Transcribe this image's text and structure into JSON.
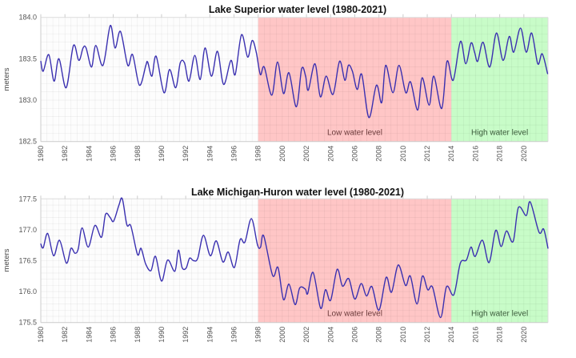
{
  "chart_data": [
    {
      "type": "line",
      "title": "Lake Superior water level (1980-2021)",
      "xlabel": "",
      "ylabel": "meters",
      "xlim": [
        1980,
        2022
      ],
      "ylim": [
        182.5,
        184.0
      ],
      "yticks": [
        "182.5",
        "183.0",
        "183.5",
        "184.0"
      ],
      "xticks": [
        "1980",
        "1982",
        "1984",
        "1986",
        "1988",
        "1990",
        "1992",
        "1994",
        "1996",
        "1998",
        "2000",
        "2002",
        "2004",
        "2006",
        "2008",
        "2010",
        "2012",
        "2014",
        "2016",
        "2018",
        "2020"
      ],
      "grid": true,
      "regions": [
        {
          "label": "Low water level",
          "from": 1998,
          "to": 2014,
          "color": "#ffc6c6",
          "text_color": "#6b3b3b"
        },
        {
          "label": "High water level",
          "from": 2014,
          "to": 2022,
          "color": "#c8fcc8",
          "text_color": "#3b5b3b"
        }
      ],
      "line_color": "#3a30b0",
      "x": [
        1980.0,
        1980.2,
        1980.66,
        1981.1,
        1981.5,
        1982.1,
        1982.7,
        1983.15,
        1983.5,
        1983.75,
        1984.2,
        1984.55,
        1985.15,
        1985.75,
        1986.15,
        1986.6,
        1987.2,
        1987.6,
        1988.17,
        1988.7,
        1988.85,
        1989.2,
        1989.55,
        1990.2,
        1990.66,
        1991.17,
        1991.55,
        1991.9,
        1992.27,
        1992.75,
        1993.2,
        1993.6,
        1994.13,
        1994.63,
        1995.14,
        1995.74,
        1996.1,
        1996.62,
        1997.13,
        1997.5,
        1997.84,
        1998.18,
        1998.5,
        1999.13,
        1999.6,
        2000.1,
        2000.55,
        2001.16,
        2001.6,
        2001.93,
        2002.15,
        2002.7,
        2003.15,
        2003.63,
        2004.2,
        2004.74,
        2005.18,
        2005.47,
        2005.8,
        2006.2,
        2006.58,
        2007.17,
        2007.79,
        2008.23,
        2008.56,
        2009.16,
        2009.66,
        2010.22,
        2010.62,
        2011.21,
        2011.58,
        2012.16,
        2012.54,
        2013.2,
        2013.64,
        2014.15,
        2014.75,
        2015.19,
        2015.63,
        2015.92,
        2016.18,
        2016.62,
        2017.18,
        2017.73,
        2018.28,
        2018.79,
        2019.16,
        2019.72,
        2020.2,
        2020.65,
        2021.15,
        2021.52,
        2021.97
      ],
      "y": [
        183.47,
        183.35,
        183.55,
        183.23,
        183.5,
        183.15,
        183.66,
        183.48,
        183.63,
        183.63,
        183.4,
        183.66,
        183.42,
        183.9,
        183.63,
        183.83,
        183.42,
        183.55,
        183.18,
        183.42,
        183.46,
        183.29,
        183.53,
        183.09,
        183.37,
        183.15,
        183.45,
        183.45,
        183.23,
        183.54,
        183.25,
        183.63,
        183.29,
        183.59,
        183.19,
        183.48,
        183.31,
        183.79,
        183.52,
        183.72,
        183.58,
        183.31,
        183.4,
        183.06,
        183.46,
        183.08,
        183.33,
        182.92,
        183.38,
        183.29,
        183.12,
        183.44,
        183.04,
        183.29,
        183.07,
        183.47,
        183.24,
        183.42,
        183.35,
        183.13,
        183.31,
        182.79,
        183.18,
        182.97,
        183.42,
        183.09,
        183.42,
        183.09,
        183.22,
        182.88,
        183.27,
        182.94,
        183.29,
        182.9,
        183.47,
        183.24,
        183.71,
        183.44,
        183.69,
        183.58,
        183.47,
        183.7,
        183.4,
        183.81,
        183.48,
        183.77,
        183.58,
        183.87,
        183.58,
        183.81,
        183.44,
        183.56,
        183.32
      ]
    },
    {
      "type": "line",
      "title": "Lake Michigan-Huron water level (1980-2021)",
      "xlabel": "",
      "ylabel": "meters",
      "xlim": [
        1980,
        2022
      ],
      "ylim": [
        175.5,
        177.5
      ],
      "yticks": [
        "175.5",
        "176.0",
        "176.5",
        "177.0",
        "177.5"
      ],
      "xticks": [
        "1980",
        "1982",
        "1984",
        "1986",
        "1988",
        "1990",
        "1992",
        "1994",
        "1996",
        "1998",
        "2000",
        "2002",
        "2004",
        "2006",
        "2008",
        "2010",
        "2012",
        "2014",
        "2016",
        "2018",
        "2020"
      ],
      "grid": true,
      "regions": [
        {
          "label": "Low water level",
          "from": 1998,
          "to": 2014,
          "color": "#ffc6c6",
          "text_color": "#6b3b3b"
        },
        {
          "label": "High water level",
          "from": 2014,
          "to": 2022,
          "color": "#c8fcc8",
          "text_color": "#3b5b3b"
        }
      ],
      "line_color": "#3a30b0",
      "x": [
        1980.0,
        1980.2,
        1980.57,
        1981.06,
        1981.55,
        1982.12,
        1982.5,
        1982.83,
        1983.1,
        1983.42,
        1983.93,
        1984.48,
        1985.03,
        1985.36,
        1985.74,
        1986.03,
        1986.47,
        1986.75,
        1987.13,
        1987.46,
        1988.01,
        1988.3,
        1988.68,
        1989.12,
        1989.5,
        1990.0,
        1990.5,
        1991.1,
        1991.4,
        1991.7,
        1992.03,
        1992.32,
        1992.65,
        1993.0,
        1993.47,
        1994.04,
        1994.53,
        1995.08,
        1995.52,
        1996.03,
        1996.5,
        1996.9,
        1997.44,
        1997.95,
        1998.2,
        1998.46,
        1999.2,
        1999.64,
        2000.1,
        2000.55,
        2001.06,
        2001.44,
        2001.9,
        2002.1,
        2002.55,
        2003.17,
        2003.57,
        2004.0,
        2004.54,
        2004.98,
        2005.5,
        2006.0,
        2006.53,
        2006.97,
        2007.42,
        2008.0,
        2008.6,
        2009.04,
        2009.6,
        2010.2,
        2010.6,
        2011.15,
        2011.6,
        2012.04,
        2012.44,
        2013.1,
        2013.6,
        2014.2,
        2014.74,
        2015.24,
        2015.62,
        2015.97,
        2016.57,
        2017.12,
        2017.67,
        2018.12,
        2018.56,
        2019.11,
        2019.55,
        2020.2,
        2020.53,
        2021.26,
        2021.64,
        2022.0
      ],
      "y": [
        176.77,
        176.71,
        176.94,
        176.58,
        176.83,
        176.46,
        176.7,
        176.62,
        176.69,
        177.03,
        176.72,
        177.07,
        176.88,
        177.25,
        177.2,
        177.14,
        177.4,
        177.5,
        177.08,
        177.06,
        176.6,
        176.7,
        176.45,
        176.34,
        176.57,
        176.17,
        176.51,
        176.33,
        176.67,
        176.39,
        176.38,
        176.54,
        176.5,
        176.54,
        176.91,
        176.58,
        176.82,
        176.48,
        176.64,
        176.39,
        176.84,
        176.8,
        177.18,
        176.75,
        176.72,
        176.9,
        176.26,
        176.39,
        175.87,
        176.12,
        175.79,
        176.06,
        176.04,
        175.97,
        176.31,
        175.73,
        176.03,
        175.86,
        176.36,
        176.09,
        176.21,
        175.88,
        176.13,
        175.93,
        176.08,
        175.7,
        176.23,
        175.99,
        176.43,
        176.1,
        176.25,
        175.8,
        176.25,
        176.03,
        176.07,
        175.58,
        176.08,
        175.95,
        176.46,
        176.51,
        176.72,
        176.57,
        176.83,
        176.47,
        176.99,
        176.73,
        176.98,
        176.81,
        177.36,
        177.23,
        177.45,
        176.96,
        177.01,
        176.7
      ]
    }
  ]
}
